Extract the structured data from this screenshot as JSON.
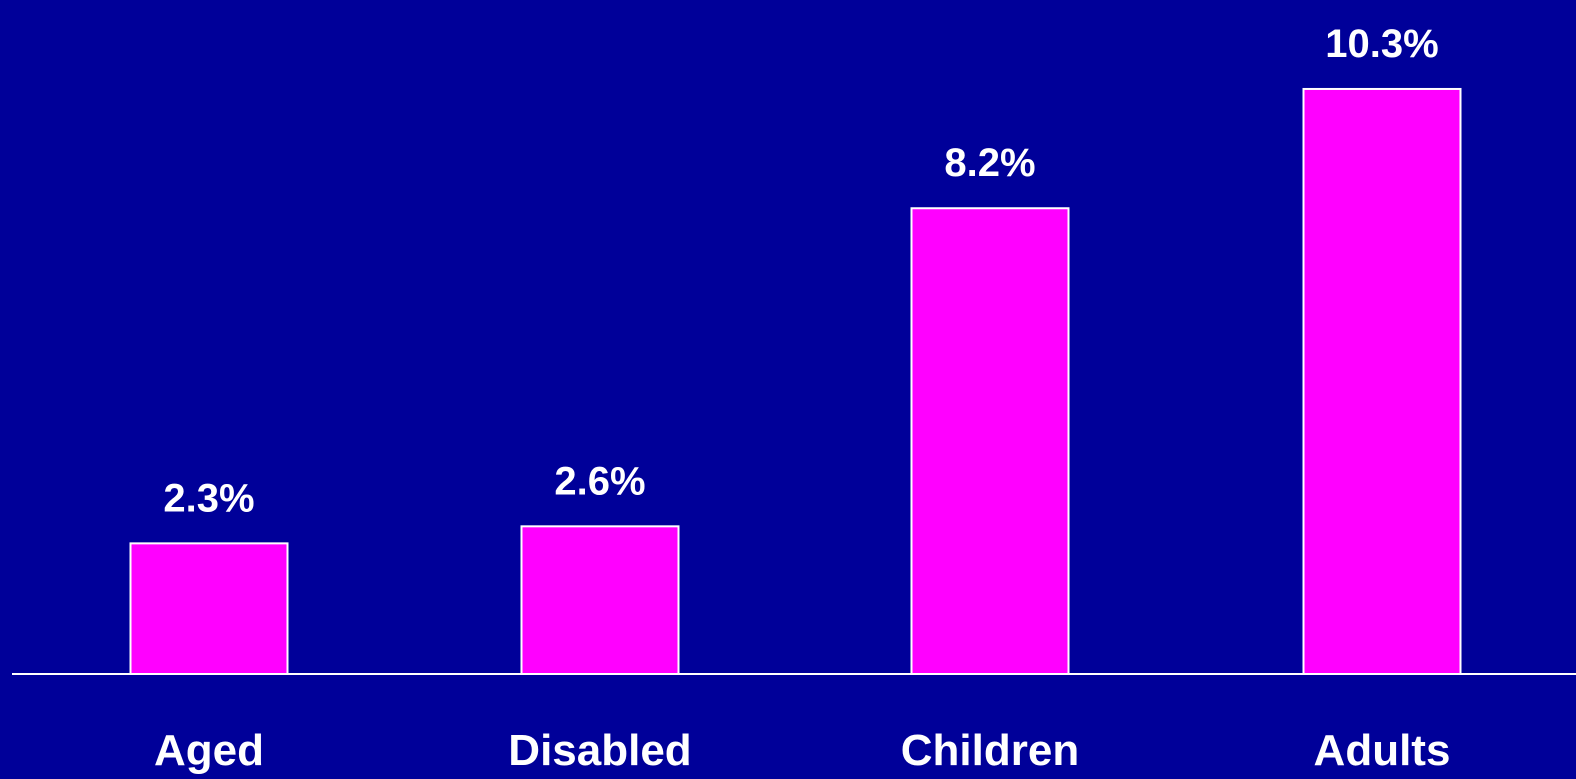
{
  "chart_data": {
    "type": "bar",
    "categories": [
      "Aged",
      "Disabled",
      "Children",
      "Adults"
    ],
    "values": [
      2.3,
      2.6,
      8.2,
      10.3
    ],
    "value_labels": [
      "2.3%",
      "2.6%",
      "8.2%",
      "10.3%"
    ],
    "title": "",
    "xlabel": "",
    "ylabel": "",
    "ylim": [
      0,
      11.3
    ],
    "grid": false,
    "legend": "none"
  },
  "colors": {
    "background": "#000099",
    "bar_fill": "#ff00ff",
    "bar_stroke": "#ffffff",
    "axis": "#ffffff",
    "text": "#ffffff"
  }
}
